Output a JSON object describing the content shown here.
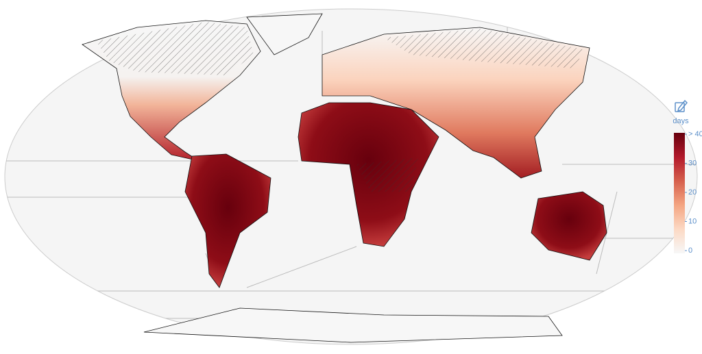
{
  "legend": {
    "title": "days",
    "range": [
      0,
      40
    ],
    "ticks": [
      0,
      10,
      20,
      30,
      {
        "value": 40,
        "label": "> 40"
      }
    ],
    "colors": [
      "#f7f7f7",
      "#fcd9c4",
      "#f4a582",
      "#d6604d",
      "#b2182b",
      "#67000d"
    ]
  }
}
